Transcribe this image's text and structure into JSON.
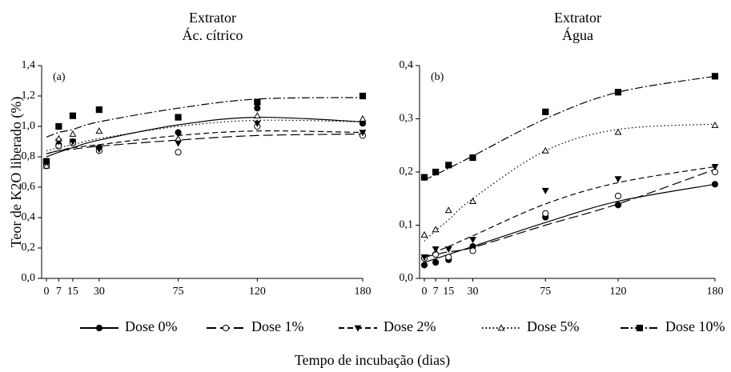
{
  "chart_data": [
    {
      "type": "scatter",
      "title": "Extrator",
      "subtitle": "Ác. cítrico",
      "annotation": "(a)",
      "ylabel": "Teor de K2O liberado (%)",
      "xlabel": "Tempo de incubação (dias)",
      "x": [
        0,
        7,
        15,
        30,
        75,
        120,
        180
      ],
      "xlim": [
        0,
        180
      ],
      "xticks": [
        0,
        7,
        15,
        30,
        75,
        120,
        180
      ],
      "ylim": [
        0,
        1.4
      ],
      "yticks": [
        {
          "value": 0,
          "label": "0,0"
        },
        {
          "value": 0.2,
          "label": "0,2"
        },
        {
          "value": 0.4,
          "label": "0,4"
        },
        {
          "value": 0.6,
          "label": "0,6"
        },
        {
          "value": 0.8,
          "label": "0,8"
        },
        {
          "value": 1.0,
          "label": "1,0"
        },
        {
          "value": 1.2,
          "label": "1,2"
        },
        {
          "value": 1.4,
          "label": "1,4"
        }
      ],
      "series": [
        {
          "name": "Dose 0%",
          "color": "#000000",
          "marker": "circle",
          "filled": true,
          "linestyle": "solid",
          "values": [
            0.76,
            0.88,
            0.9,
            0.86,
            0.96,
            1.12,
            1.02
          ],
          "trend": [
            0.8,
            0.83,
            0.86,
            0.91,
            1.01,
            1.06,
            1.03
          ]
        },
        {
          "name": "Dose 1%",
          "color": "#000000",
          "marker": "circle",
          "filled": false,
          "linestyle": "longdash",
          "values": [
            0.74,
            0.87,
            0.89,
            0.84,
            0.83,
            1.0,
            0.94
          ],
          "trend": [
            0.82,
            0.84,
            0.85,
            0.87,
            0.91,
            0.94,
            0.95
          ]
        },
        {
          "name": "Dose 2%",
          "color": "#000000",
          "marker": "triangle-down",
          "filled": true,
          "linestyle": "dash",
          "values": [
            0.75,
            0.9,
            0.9,
            0.85,
            0.89,
            1.02,
            0.96
          ],
          "trend": [
            0.82,
            0.84,
            0.86,
            0.88,
            0.94,
            0.97,
            0.96
          ]
        },
        {
          "name": "Dose 5%",
          "color": "#000000",
          "marker": "triangle-up",
          "filled": false,
          "linestyle": "dot",
          "values": [
            0.74,
            0.92,
            0.95,
            0.97,
            0.92,
            1.07,
            1.05
          ],
          "trend": [
            0.84,
            0.86,
            0.88,
            0.92,
            1.0,
            1.04,
            1.03
          ]
        },
        {
          "name": "Dose 10%",
          "color": "#000000",
          "marker": "square",
          "filled": true,
          "linestyle": "dashdot",
          "values": [
            0.77,
            1.0,
            1.07,
            1.11,
            1.06,
            1.16,
            1.2
          ],
          "trend": [
            0.93,
            0.96,
            0.98,
            1.03,
            1.12,
            1.18,
            1.19
          ]
        }
      ]
    },
    {
      "type": "scatter",
      "title": "Extrator",
      "subtitle": "Água",
      "annotation": "(b)",
      "x": [
        0,
        7,
        15,
        30,
        75,
        120,
        180
      ],
      "xlim": [
        0,
        180
      ],
      "xticks": [
        0,
        7,
        15,
        30,
        75,
        120,
        180
      ],
      "ylim": [
        0,
        0.4
      ],
      "yticks": [
        {
          "value": 0,
          "label": "0,0"
        },
        {
          "value": 0.1,
          "label": "0,1"
        },
        {
          "value": 0.2,
          "label": "0,2"
        },
        {
          "value": 0.3,
          "label": "0,3"
        },
        {
          "value": 0.4,
          "label": "0,4"
        }
      ],
      "series": [
        {
          "name": "Dose 0%",
          "color": "#000000",
          "marker": "circle",
          "filled": true,
          "linestyle": "solid",
          "values": [
            0.025,
            0.03,
            0.035,
            0.06,
            0.115,
            0.138,
            0.177
          ],
          "trend": [
            0.03,
            0.037,
            0.045,
            0.06,
            0.105,
            0.145,
            0.177
          ]
        },
        {
          "name": "Dose 1%",
          "color": "#000000",
          "marker": "circle",
          "filled": false,
          "linestyle": "longdash",
          "values": [
            0.038,
            0.045,
            0.04,
            0.052,
            0.122,
            0.155,
            0.2
          ],
          "trend": [
            0.04,
            0.045,
            0.05,
            0.058,
            0.1,
            0.14,
            0.205
          ]
        },
        {
          "name": "Dose 2%",
          "color": "#000000",
          "marker": "triangle-down",
          "filled": true,
          "linestyle": "dash",
          "values": [
            0.04,
            0.055,
            0.055,
            0.073,
            0.165,
            0.187,
            0.21
          ],
          "trend": [
            0.04,
            0.05,
            0.06,
            0.08,
            0.14,
            0.18,
            0.21
          ]
        },
        {
          "name": "Dose 5%",
          "color": "#000000",
          "marker": "triangle-up",
          "filled": false,
          "linestyle": "dot",
          "values": [
            0.082,
            0.092,
            0.128,
            0.145,
            0.24,
            0.275,
            0.288
          ],
          "trend": [
            0.07,
            0.09,
            0.11,
            0.15,
            0.24,
            0.28,
            0.29
          ]
        },
        {
          "name": "Dose 10%",
          "color": "#000000",
          "marker": "square",
          "filled": true,
          "linestyle": "dashdot",
          "values": [
            0.19,
            0.2,
            0.213,
            0.227,
            0.313,
            0.35,
            0.38
          ],
          "trend": [
            0.185,
            0.195,
            0.207,
            0.23,
            0.3,
            0.35,
            0.38
          ]
        }
      ]
    }
  ]
}
